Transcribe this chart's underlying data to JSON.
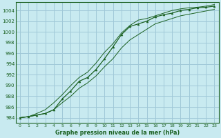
{
  "title": "Graphe pression niveau de la mer (hPa)",
  "bg_color": "#c8eaf0",
  "grid_color": "#a0c8d8",
  "line_color": "#1a6020",
  "xlim": [
    -0.5,
    23.5
  ],
  "ylim": [
    983.0,
    1005.5
  ],
  "yticks": [
    984,
    986,
    988,
    990,
    992,
    994,
    996,
    998,
    1000,
    1002,
    1004
  ],
  "xticks": [
    0,
    1,
    2,
    3,
    4,
    5,
    6,
    7,
    8,
    9,
    10,
    11,
    12,
    13,
    14,
    15,
    16,
    17,
    18,
    19,
    20,
    21,
    22,
    23
  ],
  "series_main": [
    984.0,
    984.2,
    984.5,
    984.8,
    985.5,
    987.5,
    989.0,
    990.8,
    991.5,
    993.0,
    995.0,
    997.2,
    999.5,
    1001.0,
    1001.5,
    1002.0,
    1002.8,
    1003.2,
    1003.5,
    1004.0,
    1004.2,
    1004.5,
    1004.6,
    1004.8
  ],
  "series_low": [
    984.0,
    984.2,
    984.5,
    984.8,
    985.5,
    986.8,
    988.0,
    989.5,
    990.5,
    991.8,
    993.5,
    995.0,
    997.0,
    998.5,
    999.5,
    1000.5,
    1001.5,
    1002.0,
    1002.5,
    1003.0,
    1003.3,
    1003.6,
    1003.9,
    1004.2
  ],
  "series_high": [
    984.0,
    984.2,
    984.8,
    985.5,
    986.8,
    988.3,
    990.0,
    991.5,
    992.5,
    994.2,
    996.2,
    997.8,
    999.8,
    1001.2,
    1002.2,
    1002.5,
    1003.0,
    1003.5,
    1004.0,
    1004.3,
    1004.5,
    1004.6,
    1004.8,
    1005.1
  ]
}
